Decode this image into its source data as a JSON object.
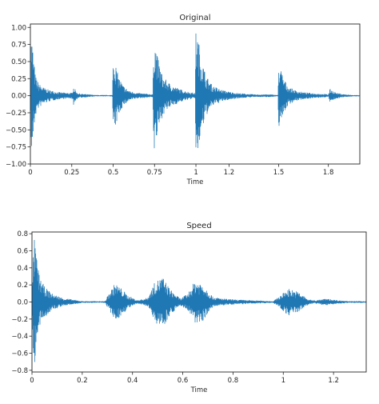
{
  "chart_data": [
    {
      "type": "line",
      "title": "Original",
      "xlabel": "Time",
      "ylabel": "",
      "xlim": [
        0,
        1.99
      ],
      "ylim": [
        -1.0,
        1.05
      ],
      "xticks": [
        0,
        0.25,
        0.5,
        0.75,
        1,
        1.2,
        1.5,
        1.8
      ],
      "xtick_labels": [
        "0",
        "0.25",
        "0.5",
        "0.75",
        "1",
        "1.2",
        "1.5",
        "1.8"
      ],
      "yticks": [
        -1.0,
        -0.75,
        -0.5,
        -0.25,
        0.0,
        0.25,
        0.5,
        0.75,
        1.0
      ],
      "ytick_labels": [
        "−1.00",
        "−0.75",
        "−0.50",
        "−0.25",
        "0.00",
        "0.25",
        "0.50",
        "0.75",
        "1.00"
      ],
      "grid": false,
      "color": "#1f77b4",
      "series": [
        {
          "x": [
            0.0,
            0.005,
            0.01,
            0.02,
            0.03,
            0.05,
            0.08,
            0.12,
            0.18,
            0.25,
            0.26,
            0.28,
            0.3,
            0.35,
            0.4,
            0.45,
            0.495,
            0.5,
            0.51,
            0.53,
            0.56,
            0.6,
            0.65,
            0.7,
            0.74,
            0.745,
            0.75,
            0.77,
            0.8,
            0.85,
            0.9,
            0.95,
            0.995,
            1.0,
            1.01,
            1.03,
            1.06,
            1.1,
            1.15,
            1.2,
            1.25,
            1.3,
            1.35,
            1.4,
            1.45,
            1.495,
            1.5,
            1.51,
            1.53,
            1.56,
            1.6,
            1.65,
            1.7,
            1.75,
            1.8,
            1.81,
            1.85,
            1.9,
            1.95,
            1.99
          ],
          "y": [
            0.02,
            0.9,
            0.85,
            0.55,
            0.3,
            0.18,
            0.12,
            0.08,
            0.05,
            0.04,
            0.14,
            0.05,
            0.03,
            0.02,
            0.01,
            0.01,
            0.01,
            0.58,
            0.52,
            0.3,
            0.15,
            0.07,
            0.04,
            0.03,
            0.02,
            0.88,
            0.85,
            0.55,
            0.28,
            0.16,
            0.1,
            0.06,
            0.04,
            0.98,
            0.9,
            0.6,
            0.3,
            0.15,
            0.09,
            0.06,
            0.04,
            0.03,
            0.02,
            0.02,
            0.02,
            0.01,
            0.46,
            0.42,
            0.25,
            0.13,
            0.08,
            0.05,
            0.04,
            0.03,
            0.02,
            0.1,
            0.04,
            0.02,
            0.01,
            0.01
          ]
        }
      ]
    },
    {
      "type": "line",
      "title": "Speed",
      "xlabel": "Time",
      "ylabel": "",
      "xlim": [
        0,
        1.33
      ],
      "ylim": [
        -0.82,
        0.82
      ],
      "xticks": [
        0,
        0.2,
        0.4,
        0.6,
        0.8,
        1,
        1.2
      ],
      "xtick_labels": [
        "0",
        "0.2",
        "0.4",
        "0.6",
        "0.8",
        "1",
        "1.2"
      ],
      "yticks": [
        -0.8,
        -0.6,
        -0.4,
        -0.2,
        0.0,
        0.2,
        0.4,
        0.6,
        0.8
      ],
      "ytick_labels": [
        "−0.8",
        "−0.6",
        "−0.4",
        "−0.2",
        "0.0",
        "0.2",
        "0.4",
        "0.6",
        "0.8"
      ],
      "grid": false,
      "color": "#1f77b4",
      "series": [
        {
          "x": [
            0.0,
            0.005,
            0.01,
            0.02,
            0.03,
            0.05,
            0.08,
            0.12,
            0.16,
            0.2,
            0.25,
            0.29,
            0.31,
            0.33,
            0.35,
            0.38,
            0.42,
            0.46,
            0.49,
            0.52,
            0.55,
            0.59,
            0.62,
            0.65,
            0.68,
            0.72,
            0.76,
            0.8,
            0.88,
            0.96,
            0.99,
            1.02,
            1.06,
            1.1,
            1.13,
            1.17,
            1.22,
            1.27,
            1.33
          ],
          "y": [
            0.02,
            0.6,
            0.75,
            0.5,
            0.3,
            0.18,
            0.1,
            0.05,
            0.03,
            0.01,
            0.01,
            0.01,
            0.12,
            0.22,
            0.18,
            0.08,
            0.02,
            0.05,
            0.24,
            0.3,
            0.15,
            0.04,
            0.1,
            0.26,
            0.22,
            0.06,
            0.04,
            0.03,
            0.02,
            0.01,
            0.08,
            0.16,
            0.12,
            0.03,
            0.02,
            0.04,
            0.02,
            0.01,
            0.01
          ]
        }
      ]
    }
  ]
}
